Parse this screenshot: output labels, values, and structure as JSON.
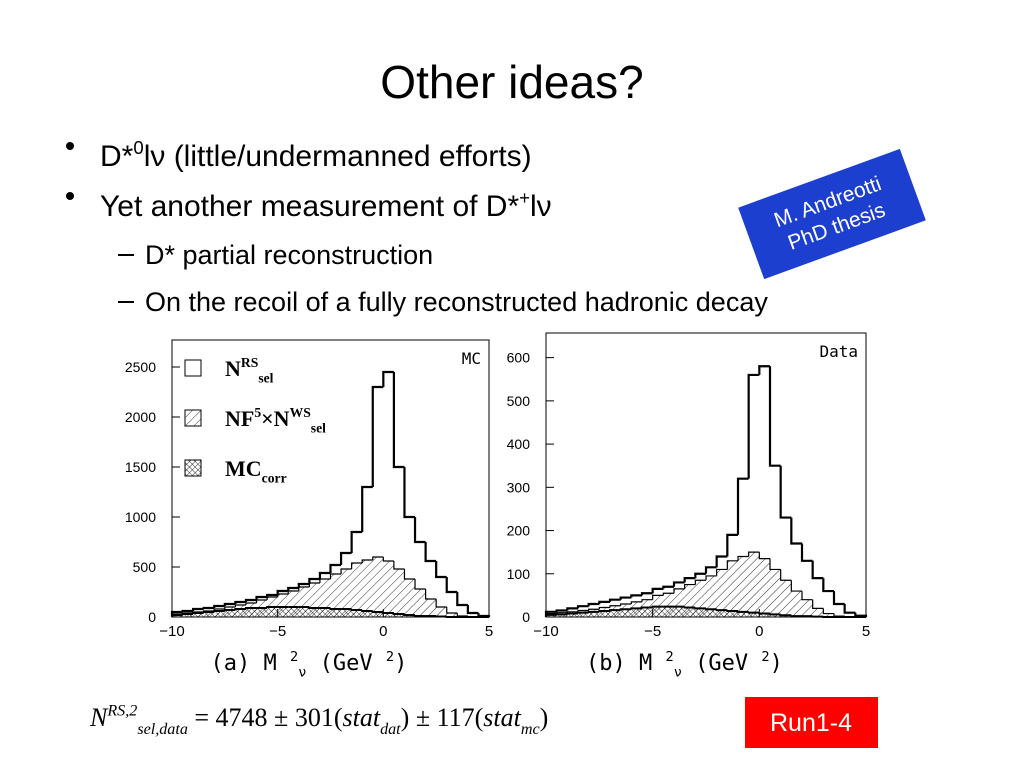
{
  "slide": {
    "title": "Other ideas?",
    "bullets": [
      {
        "parts": [
          {
            "text": "D*"
          },
          {
            "text": "0",
            "pos": "sup"
          },
          {
            "text": "lν (little/undermanned efforts)"
          }
        ]
      },
      {
        "parts": [
          {
            "text": "Yet another measurement of D*"
          },
          {
            "text": "+",
            "pos": "sup"
          },
          {
            "text": "lν"
          }
        ]
      }
    ],
    "sub_bullets": [
      "D* partial reconstruction",
      "On the recoil of a fully reconstructed hadronic decay"
    ],
    "note": [
      "M. Andreotti",
      "PhD thesis"
    ],
    "formula": {
      "parts": [
        {
          "text": "N",
          "style": "italic"
        },
        {
          "text": "RS,2",
          "pos": "sup",
          "style": "italic"
        },
        {
          "text": "sel,data",
          "pos": "sub",
          "style": "italic"
        },
        {
          "text": " = 4748 ± 301("
        },
        {
          "text": "stat",
          "style": "italic"
        },
        {
          "text": "dat",
          "pos": "sub",
          "style": "italic"
        },
        {
          "text": ") ± 117("
        },
        {
          "text": "stat",
          "style": "italic"
        },
        {
          "text": "mc",
          "pos": "sub",
          "style": "italic"
        },
        {
          "text": ")"
        }
      ]
    },
    "badge": "Run1-4"
  },
  "chart_data": [
    {
      "type": "histogram",
      "annotation": "MC",
      "bins": [
        -10,
        -9.5,
        -9,
        -8.5,
        -8,
        -7.5,
        -7,
        -6.5,
        -6,
        -5.5,
        -5,
        -4.5,
        -4,
        -3.5,
        -3,
        -2.5,
        -2,
        -1.5,
        -1,
        -0.5,
        0,
        0.5,
        1,
        1.5,
        2,
        2.5,
        3,
        3.5,
        4,
        4.5,
        5
      ],
      "series": [
        {
          "style": "open",
          "color": "#000000",
          "values": [
            50,
            60,
            80,
            90,
            110,
            130,
            150,
            170,
            200,
            220,
            260,
            290,
            330,
            380,
            440,
            520,
            640,
            850,
            1300,
            2300,
            2450,
            1500,
            1000,
            750,
            560,
            400,
            250,
            120,
            40,
            10
          ]
        },
        {
          "style": "hatch",
          "color": "#000000",
          "values": [
            30,
            40,
            50,
            60,
            80,
            100,
            120,
            140,
            170,
            200,
            230,
            260,
            300,
            340,
            380,
            430,
            480,
            540,
            570,
            600,
            560,
            480,
            380,
            280,
            180,
            100,
            40,
            10,
            0,
            0
          ]
        },
        {
          "style": "crosshatch",
          "color": "#000000",
          "values": [
            20,
            30,
            40,
            50,
            60,
            70,
            80,
            90,
            90,
            100,
            100,
            100,
            100,
            90,
            90,
            80,
            80,
            70,
            60,
            50,
            40,
            30,
            20,
            10,
            10,
            5,
            0,
            0,
            0,
            0
          ]
        }
      ],
      "legend": [
        {
          "parts": [
            {
              "text": "N"
            },
            {
              "text": "RS",
              "pos": "sup"
            },
            {
              "text": "sel",
              "pos": "sub"
            }
          ]
        },
        {
          "parts": [
            {
              "text": "NF"
            },
            {
              "text": "5",
              "pos": "sup"
            },
            {
              "text": "×N"
            },
            {
              "text": "WS",
              "pos": "sup"
            },
            {
              "text": "sel",
              "pos": "sub"
            }
          ]
        },
        {
          "parts": [
            {
              "text": "MC"
            },
            {
              "text": "corr",
              "pos": "sub"
            }
          ]
        }
      ],
      "xlabel": {
        "parts": [
          {
            "text": "(a) M "
          },
          {
            "text": "2",
            "pos": "sup"
          },
          {
            "text": "ν",
            "pos": "sub"
          },
          {
            "text": " (GeV "
          },
          {
            "text": "2",
            "pos": "sup"
          },
          {
            "text": ")"
          }
        ]
      },
      "xlim": [
        -10,
        5
      ],
      "ylim": [
        0,
        2770
      ],
      "xticks": [
        {
          "value": -10,
          "label": "−10"
        },
        {
          "value": -5,
          "label": "−5"
        },
        0,
        5
      ],
      "yticks": [
        0,
        500,
        1000,
        1500,
        2000,
        2500
      ]
    },
    {
      "type": "histogram",
      "annotation": "Data",
      "bins": [
        -10,
        -9.5,
        -9,
        -8.5,
        -8,
        -7.5,
        -7,
        -6.5,
        -6,
        -5.5,
        -5,
        -4.5,
        -4,
        -3.5,
        -3,
        -2.5,
        -2,
        -1.5,
        -1,
        -0.5,
        0,
        0.5,
        1,
        1.5,
        2,
        2.5,
        3,
        3.5,
        4,
        4.5,
        5
      ],
      "series": [
        {
          "style": "open",
          "color": "#000000",
          "values": [
            12,
            15,
            20,
            25,
            30,
            35,
            40,
            45,
            50,
            55,
            65,
            70,
            80,
            90,
            100,
            115,
            140,
            190,
            320,
            560,
            580,
            350,
            230,
            170,
            130,
            90,
            60,
            30,
            10,
            3
          ]
        },
        {
          "style": "hatch",
          "color": "#000000",
          "values": [
            8,
            10,
            12,
            15,
            18,
            22,
            26,
            30,
            35,
            40,
            50,
            55,
            65,
            75,
            85,
            95,
            110,
            130,
            140,
            150,
            135,
            110,
            85,
            60,
            40,
            20,
            8,
            2,
            0,
            0
          ]
        },
        {
          "style": "crosshatch",
          "color": "#000000",
          "values": [
            5,
            6,
            8,
            10,
            12,
            14,
            16,
            18,
            20,
            22,
            24,
            24,
            24,
            22,
            20,
            18,
            16,
            14,
            12,
            10,
            8,
            6,
            4,
            2,
            2,
            1,
            0,
            0,
            0,
            0
          ]
        }
      ],
      "xlabel": {
        "parts": [
          {
            "text": "(b) M "
          },
          {
            "text": "2",
            "pos": "sup"
          },
          {
            "text": "ν",
            "pos": "sub"
          },
          {
            "text": " (GeV "
          },
          {
            "text": "2",
            "pos": "sup"
          },
          {
            "text": ")"
          }
        ]
      },
      "xlim": [
        -10,
        5
      ],
      "ylim": [
        0,
        657
      ],
      "xticks": [
        {
          "value": -10,
          "label": "−10"
        },
        {
          "value": -5,
          "label": "−5"
        },
        0,
        5
      ],
      "yticks": [
        0,
        100,
        200,
        300,
        400,
        500,
        600
      ]
    }
  ]
}
